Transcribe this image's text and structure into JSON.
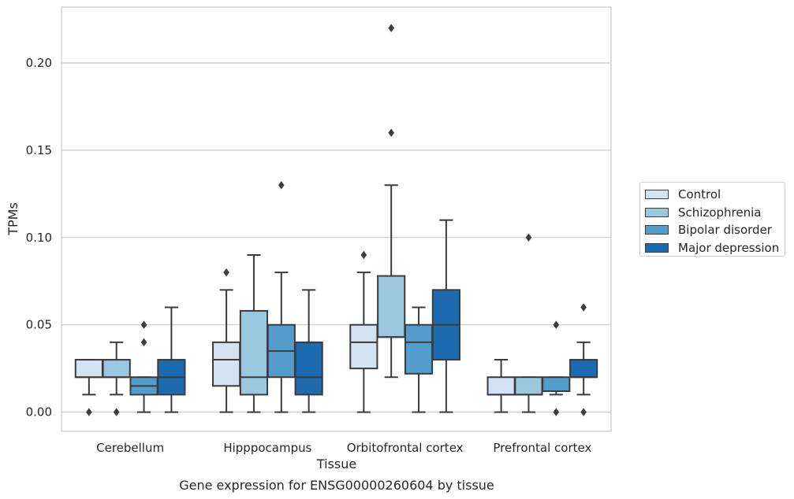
{
  "chart_data": {
    "type": "box",
    "title": "Gene expression for ENSG00000260604 by tissue",
    "xlabel": "Tissue",
    "ylabel": "TPMs",
    "ylim": [
      -0.011,
      0.232
    ],
    "yticks": [
      0.0,
      0.05,
      0.1,
      0.15,
      0.2
    ],
    "ytick_labels": [
      "0.00",
      "0.05",
      "0.10",
      "0.15",
      "0.20"
    ],
    "grid": true,
    "legend_position": "right",
    "categories": [
      "Cerebellum",
      "Hipppocampus",
      "Orbitofrontal cortex",
      "Prefrontal cortex"
    ],
    "series": [
      {
        "name": "Control",
        "color": "#d3e3f3",
        "boxes": [
          {
            "q1": 0.02,
            "median": 0.02,
            "q3": 0.03,
            "whisker_low": 0.01,
            "whisker_high": 0.03,
            "outliers": [
              0.0
            ]
          },
          {
            "q1": 0.015,
            "median": 0.03,
            "q3": 0.04,
            "whisker_low": 0.0,
            "whisker_high": 0.07,
            "outliers": [
              0.08
            ]
          },
          {
            "q1": 0.025,
            "median": 0.04,
            "q3": 0.05,
            "whisker_low": 0.0,
            "whisker_high": 0.08,
            "outliers": [
              0.09
            ]
          },
          {
            "q1": 0.01,
            "median": 0.01,
            "q3": 0.02,
            "whisker_low": 0.0,
            "whisker_high": 0.03,
            "outliers": []
          }
        ]
      },
      {
        "name": "Schizophrenia",
        "color": "#9ac8e0",
        "boxes": [
          {
            "q1": 0.02,
            "median": 0.02,
            "q3": 0.03,
            "whisker_low": 0.01,
            "whisker_high": 0.04,
            "outliers": [
              0.0
            ]
          },
          {
            "q1": 0.01,
            "median": 0.02,
            "q3": 0.058,
            "whisker_low": 0.0,
            "whisker_high": 0.09,
            "outliers": []
          },
          {
            "q1": 0.043,
            "median": 0.043,
            "q3": 0.078,
            "whisker_low": 0.02,
            "whisker_high": 0.13,
            "outliers": [
              0.16,
              0.22
            ]
          },
          {
            "q1": 0.01,
            "median": 0.01,
            "q3": 0.02,
            "whisker_low": 0.0,
            "whisker_high": 0.02,
            "outliers": [
              0.1
            ]
          }
        ]
      },
      {
        "name": "Bipolar disorder",
        "color": "#529dcc",
        "boxes": [
          {
            "q1": 0.01,
            "median": 0.015,
            "q3": 0.02,
            "whisker_low": 0.0,
            "whisker_high": 0.02,
            "outliers": [
              0.04,
              0.05
            ]
          },
          {
            "q1": 0.02,
            "median": 0.035,
            "q3": 0.05,
            "whisker_low": 0.0,
            "whisker_high": 0.08,
            "outliers": [
              0.13
            ]
          },
          {
            "q1": 0.022,
            "median": 0.04,
            "q3": 0.05,
            "whisker_low": 0.0,
            "whisker_high": 0.06,
            "outliers": []
          },
          {
            "q1": 0.012,
            "median": 0.012,
            "q3": 0.02,
            "whisker_low": 0.01,
            "whisker_high": 0.02,
            "outliers": [
              0.0,
              0.05
            ]
          }
        ]
      },
      {
        "name": "Major depression",
        "color": "#1c6aaf",
        "boxes": [
          {
            "q1": 0.01,
            "median": 0.02,
            "q3": 0.03,
            "whisker_low": 0.0,
            "whisker_high": 0.06,
            "outliers": []
          },
          {
            "q1": 0.01,
            "median": 0.02,
            "q3": 0.04,
            "whisker_low": 0.0,
            "whisker_high": 0.07,
            "outliers": []
          },
          {
            "q1": 0.03,
            "median": 0.05,
            "q3": 0.07,
            "whisker_low": 0.0,
            "whisker_high": 0.11,
            "outliers": []
          },
          {
            "q1": 0.02,
            "median": 0.02,
            "q3": 0.03,
            "whisker_low": 0.01,
            "whisker_high": 0.04,
            "outliers": [
              0.0,
              0.06
            ]
          }
        ]
      }
    ]
  }
}
